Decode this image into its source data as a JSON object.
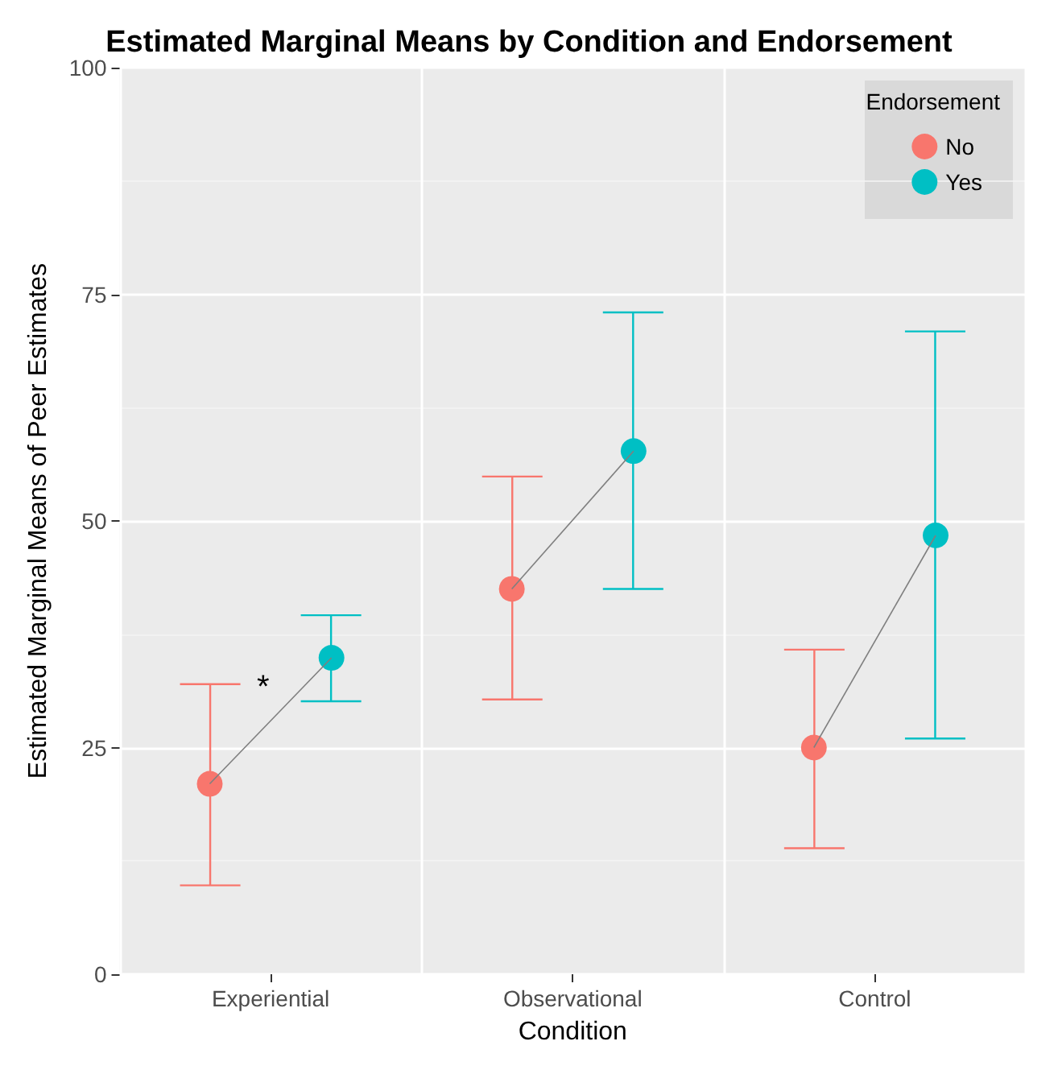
{
  "chart_data": {
    "type": "scatter",
    "title": "Estimated Marginal Means by Condition and Endorsement",
    "xlabel": "Condition",
    "ylabel": "Estimated Marginal Means of Peer Estimates",
    "legend_title": "Endorsement",
    "categories": [
      "Experiential",
      "Observational",
      "Control"
    ],
    "series": [
      {
        "name": "No",
        "color": "#f8766d",
        "values": [
          21.0,
          42.5,
          25.0
        ],
        "errors": [
          [
            9.8,
            32.0
          ],
          [
            30.3,
            54.9
          ],
          [
            13.9,
            35.8
          ]
        ]
      },
      {
        "name": "Yes",
        "color": "#00bfc4",
        "values": [
          34.9,
          57.7,
          48.4
        ],
        "errors": [
          [
            30.1,
            39.6
          ],
          [
            42.5,
            73.0
          ],
          [
            26.0,
            70.9
          ]
        ]
      }
    ],
    "ylim": [
      0,
      100
    ],
    "yticks": [
      0,
      25,
      50,
      75,
      100
    ],
    "grid": true,
    "legend": "top right",
    "marker": "circle",
    "line_style": "solid",
    "annotations": [
      "*"
    ]
  }
}
